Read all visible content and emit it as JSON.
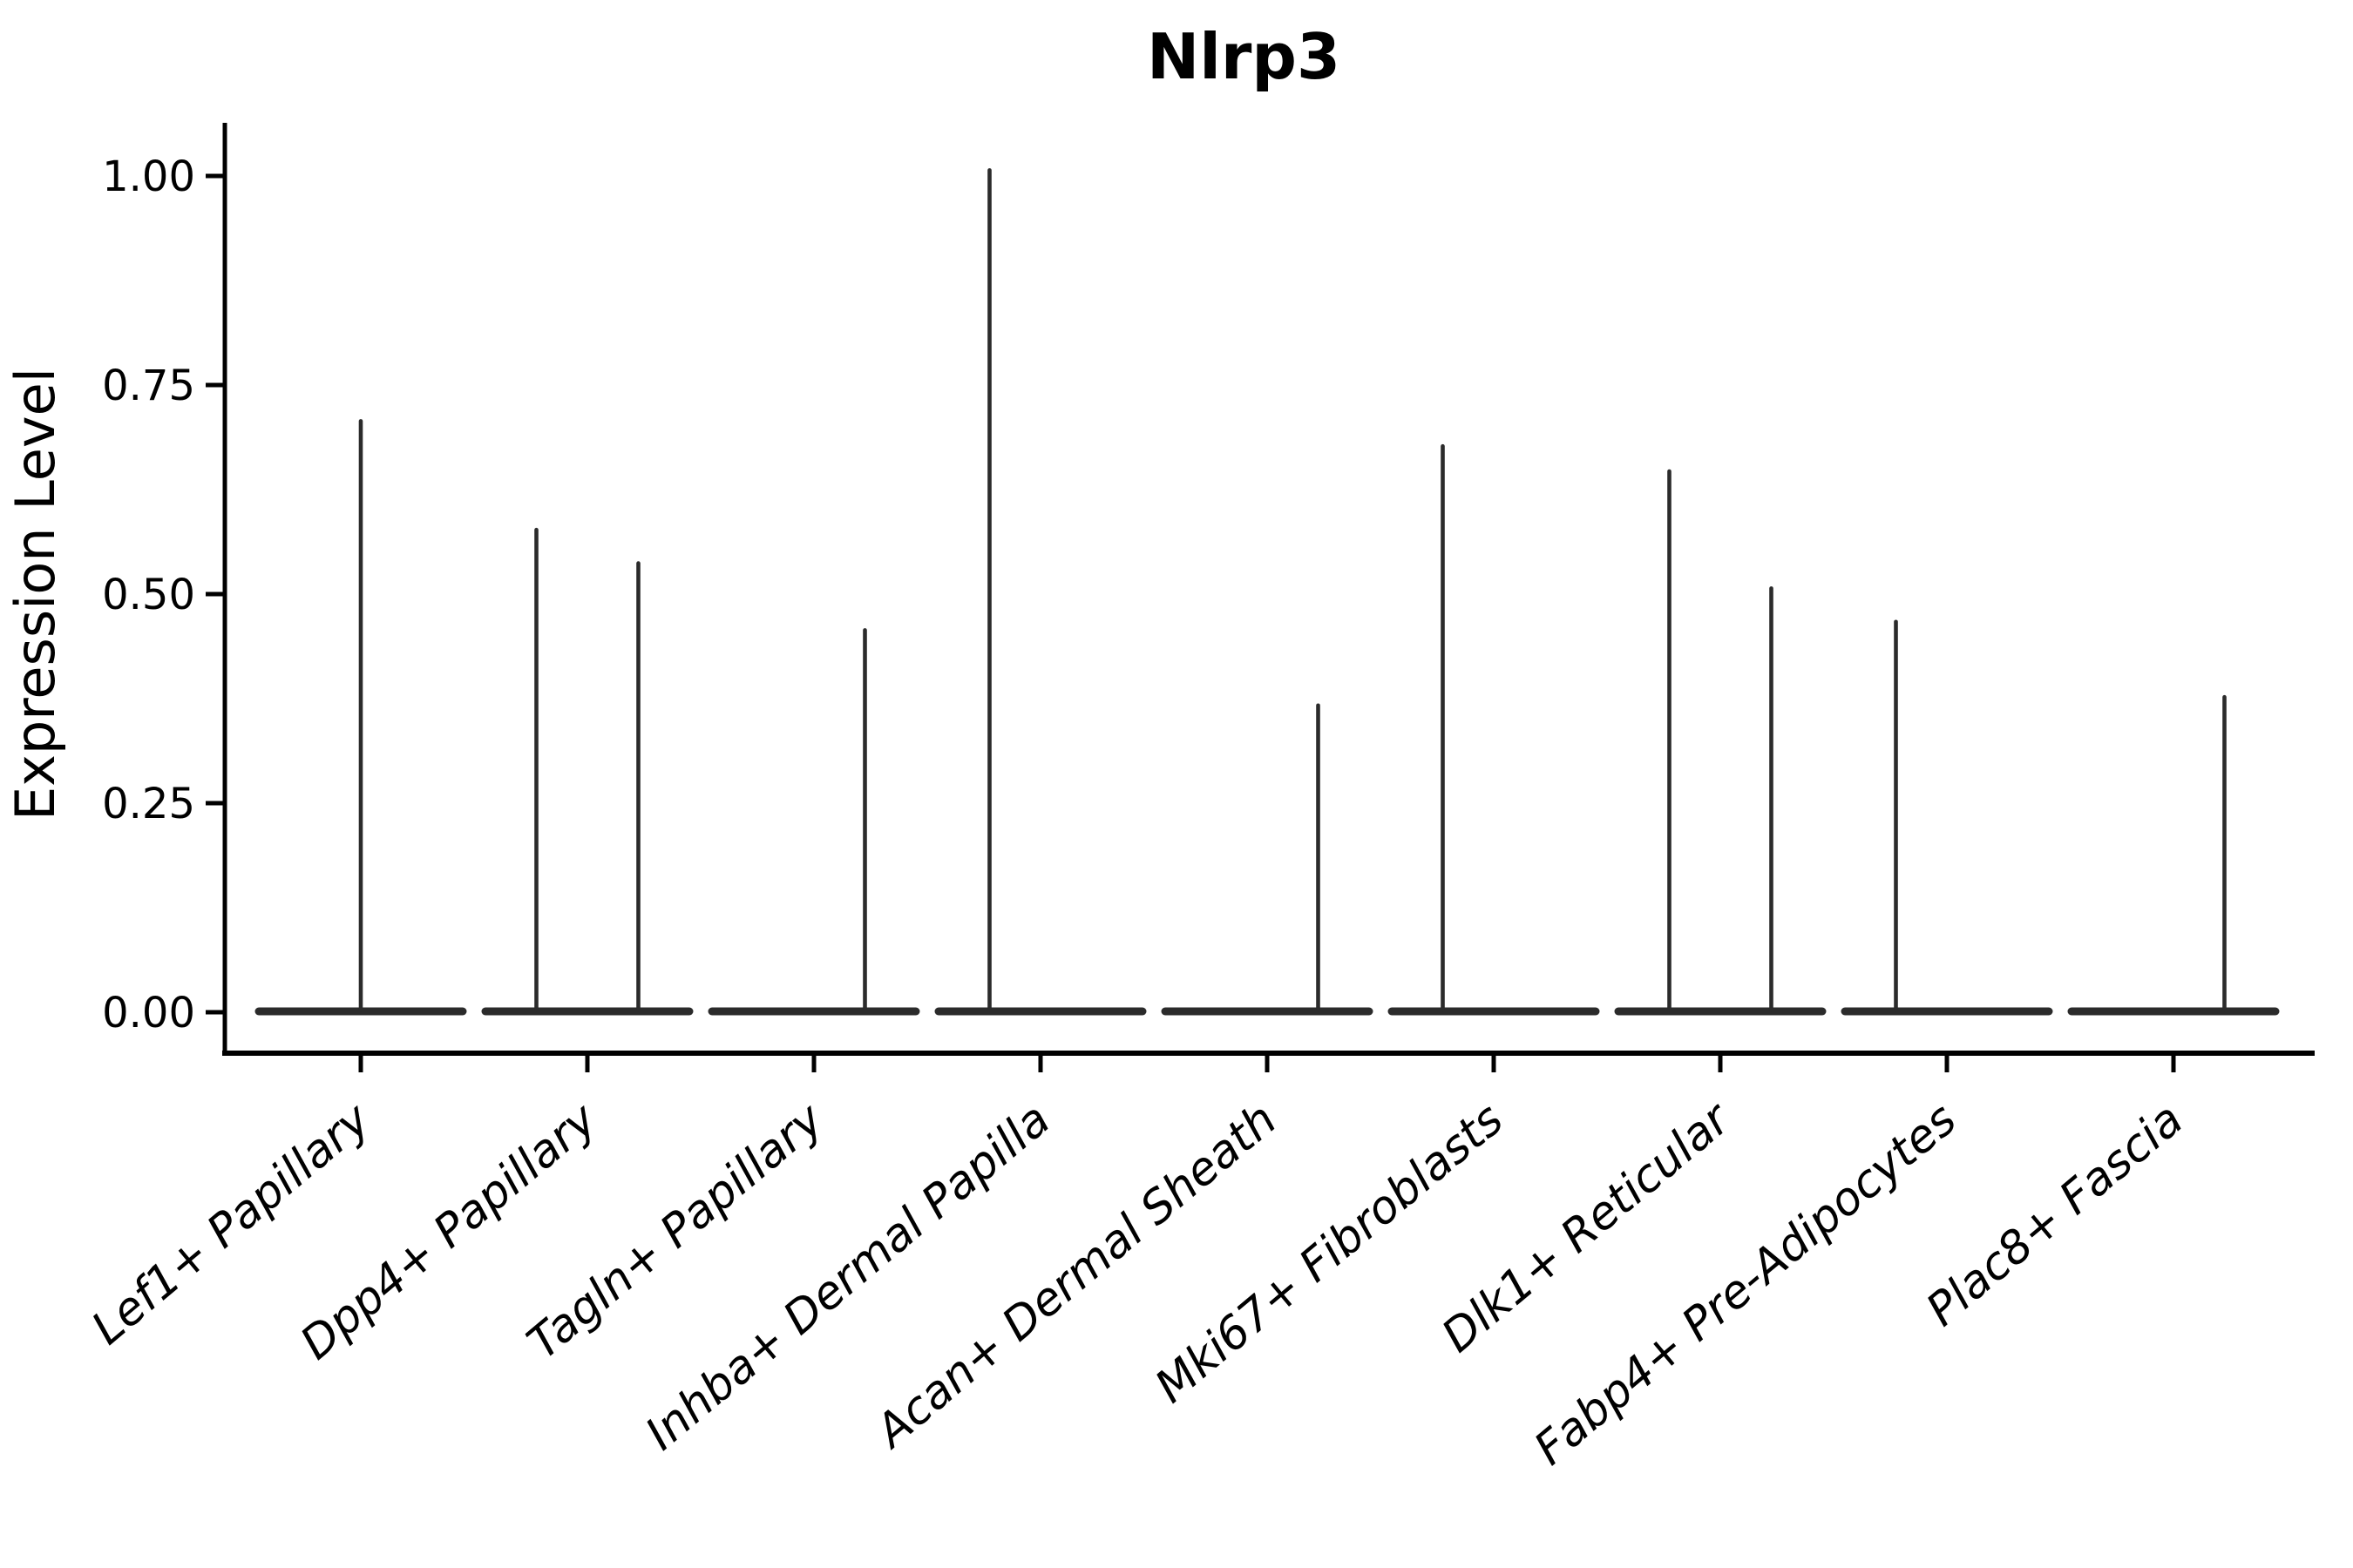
{
  "colors": {
    "ink": "#262626",
    "violin": "#2b2b2b",
    "background": "#ffffff"
  },
  "chart_data": {
    "type": "violin",
    "title": "Nlrp3",
    "xlabel": "",
    "ylabel": "Expression Level",
    "legend": "none",
    "grid": false,
    "ylim": [
      -0.05,
      1.06
    ],
    "y_ticks": [
      {
        "value": 0.0,
        "label": "0.00"
      },
      {
        "value": 0.25,
        "label": "0.25"
      },
      {
        "value": 0.5,
        "label": "0.50"
      },
      {
        "value": 0.75,
        "label": "0.75"
      },
      {
        "value": 1.0,
        "label": "1.00"
      }
    ],
    "x_tick_rotation_deg": 40,
    "violin_width_frac": 0.9,
    "split_offset_frac": 0.225,
    "description": "Sparse single-cell expression violins: each category shows a flat baseline at 0 with thin density spikes reaching the max expressed values; spikes sit at category center, or offset left/right for split sub-violins.",
    "categories": [
      {
        "label": "Lef1+ Papillary",
        "spikes": [
          {
            "position": "center",
            "max": 0.71
          }
        ]
      },
      {
        "label": "Dpp4+ Papillary",
        "spikes": [
          {
            "position": "left",
            "max": 0.58
          },
          {
            "position": "right",
            "max": 0.54
          }
        ]
      },
      {
        "label": "Tagln+ Papillary",
        "spikes": [
          {
            "position": "right",
            "max": 0.46
          }
        ]
      },
      {
        "label": "Inhba+ Dermal Papilla",
        "spikes": [
          {
            "position": "left",
            "max": 1.01
          }
        ]
      },
      {
        "label": "Acan+ Dermal Sheath",
        "spikes": [
          {
            "position": "right",
            "max": 0.37
          }
        ]
      },
      {
        "label": "Mki67+ Fibroblasts",
        "spikes": [
          {
            "position": "left",
            "max": 0.68
          }
        ]
      },
      {
        "label": "Dlk1+ Reticular",
        "spikes": [
          {
            "position": "left",
            "max": 0.65
          },
          {
            "position": "right",
            "max": 0.51
          }
        ]
      },
      {
        "label": "Fabp4+ Pre-Adipocytes",
        "spikes": [
          {
            "position": "left",
            "max": 0.47
          }
        ]
      },
      {
        "label": "Plac8+ Fascia",
        "spikes": [
          {
            "position": "right",
            "max": 0.38
          }
        ]
      }
    ]
  }
}
